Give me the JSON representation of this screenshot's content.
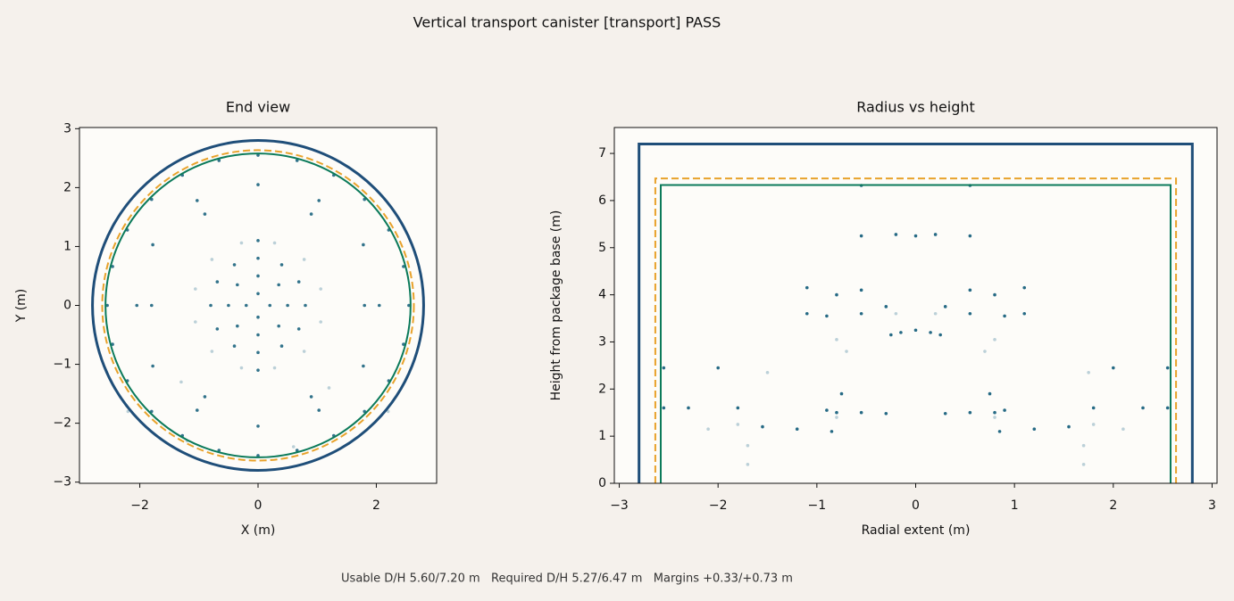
{
  "title": "Vertical transport canister [transport] PASS",
  "footer": "Usable D/H 5.60/7.20 m   Required D/H 5.27/6.47 m   Margins +0.33/+0.73 m",
  "chart_data": [
    {
      "type": "scatter",
      "title": "End view",
      "x_label": "X (m)",
      "y_label": "Y (m)",
      "xlim": [
        -3.02,
        3.02
      ],
      "ylim": [
        -3.02,
        3.02
      ],
      "xticks": [
        {
          "value": -2,
          "label": "−2"
        },
        0,
        2
      ],
      "yticks": [
        {
          "value": -3,
          "label": "−3"
        },
        {
          "value": -2,
          "label": "−2"
        },
        {
          "value": -1,
          "label": "−1"
        },
        0,
        1,
        2,
        3
      ],
      "outlines": [
        {
          "r": 2.8,
          "color": "#1f4e79",
          "dashed": false
        },
        {
          "r": 2.635,
          "color": "#e8a22b",
          "dashed": true
        },
        {
          "r": 2.58,
          "color": "#0b7a5a",
          "dashed": false
        }
      ],
      "series": [
        {
          "color": "#0e5a78",
          "opacity": 0.85,
          "x": [
            2.55,
            2.46,
            2.21,
            1.8,
            1.28,
            0.66,
            0,
            -0.66,
            -1.28,
            -1.8,
            -2.21,
            -2.46,
            -2.55,
            -2.46,
            -2.21,
            -1.8,
            -1.28,
            -0.66,
            0,
            0.66,
            1.28,
            1.8,
            2.21,
            2.46,
            2.05,
            1.78,
            1.03,
            0,
            -1.03,
            -1.78,
            -2.05,
            -1.78,
            -1.03,
            0,
            1.03,
            1.78,
            0.8,
            0.69,
            0.4,
            0,
            -0.4,
            -0.69,
            -0.8,
            -0.69,
            -0.4,
            0,
            0.4,
            0.69,
            0.5,
            0.35,
            0,
            -0.35,
            -0.5,
            -0.35,
            0,
            0.35,
            0.2,
            0,
            -0.2,
            0,
            -0.9,
            0.9,
            -1.8,
            1.8,
            0.9,
            -0.9,
            0,
            0
          ],
          "y": [
            0,
            0.66,
            1.28,
            1.8,
            2.21,
            2.46,
            2.55,
            2.46,
            2.21,
            1.8,
            1.28,
            0.66,
            0,
            -0.66,
            -1.28,
            -1.8,
            -2.21,
            -2.46,
            -2.55,
            -2.46,
            -2.21,
            -1.8,
            -1.28,
            -0.66,
            0,
            1.03,
            1.78,
            2.05,
            1.78,
            1.03,
            0,
            -1.03,
            -1.78,
            -2.05,
            -1.78,
            -1.03,
            0,
            0.4,
            0.69,
            0.8,
            0.69,
            0.4,
            0,
            -0.4,
            -0.69,
            -0.8,
            -0.69,
            -0.4,
            0,
            0.35,
            0.5,
            0.35,
            0,
            -0.35,
            -0.5,
            -0.35,
            0,
            0.2,
            0,
            -0.2,
            1.55,
            1.55,
            0,
            0,
            -1.55,
            -1.55,
            1.1,
            -1.1
          ]
        },
        {
          "color": "#8fb3c2",
          "opacity": 0.6,
          "x": [
            1.06,
            0.78,
            0.28,
            -0.28,
            -0.78,
            -1.06,
            -1.06,
            -0.78,
            -0.28,
            0.28,
            0.78,
            1.06,
            -1.3,
            1.2,
            -1.2,
            0.6,
            -2.2,
            2.2
          ],
          "y": [
            0.28,
            0.78,
            1.06,
            1.06,
            0.78,
            0.28,
            -0.28,
            -0.78,
            -1.06,
            -1.06,
            -0.78,
            -0.28,
            -1.3,
            -1.4,
            -2.3,
            -2.4,
            -1.8,
            -1.8
          ]
        }
      ]
    },
    {
      "type": "scatter",
      "title": "Radius vs height",
      "x_label": "Radial extent (m)",
      "y_label": "Height from package base (m)",
      "xlim": [
        -3.05,
        3.05
      ],
      "ylim": [
        0,
        7.55
      ],
      "xticks": [
        {
          "value": -3,
          "label": "−3"
        },
        {
          "value": -2,
          "label": "−2"
        },
        {
          "value": -1,
          "label": "−1"
        },
        0,
        1,
        2,
        3
      ],
      "yticks": [
        0,
        1,
        2,
        3,
        4,
        5,
        6,
        7
      ],
      "outlines": [
        {
          "r": 2.8,
          "h": 7.2,
          "color": "#1f4e79",
          "dashed": false
        },
        {
          "r": 2.635,
          "h": 6.47,
          "color": "#e8a22b",
          "dashed": true
        },
        {
          "r": 2.58,
          "h": 6.33,
          "color": "#0b7a5a",
          "dashed": false
        }
      ],
      "series": [
        {
          "color": "#0e5a78",
          "opacity": 0.9,
          "x": [
            -2.55,
            -2.0,
            2.0,
            2.55,
            -2.55,
            -2.3,
            -1.8,
            -1.55,
            -1.2,
            -0.9,
            -0.8,
            -0.55,
            -0.3,
            0.3,
            0.55,
            0.8,
            0.9,
            1.2,
            1.55,
            1.8,
            2.3,
            2.55,
            -0.85,
            0.85,
            -1.1,
            -0.9,
            -0.55,
            -0.3,
            0.3,
            0.55,
            0.9,
            1.1,
            -0.15,
            0,
            0.15,
            -0.25,
            0.25,
            -0.55,
            -0.2,
            0,
            0.2,
            0.55,
            -0.55,
            0.55,
            -1.1,
            1.1,
            -0.55,
            0.55,
            -0.8,
            0.8,
            -0.75,
            0.75
          ],
          "y": [
            2.45,
            2.45,
            2.45,
            2.45,
            1.6,
            1.6,
            1.6,
            1.2,
            1.15,
            1.55,
            1.5,
            1.5,
            1.48,
            1.48,
            1.5,
            1.5,
            1.55,
            1.15,
            1.2,
            1.6,
            1.6,
            1.6,
            1.1,
            1.1,
            3.6,
            3.55,
            3.6,
            3.75,
            3.75,
            3.6,
            3.55,
            3.6,
            3.2,
            3.25,
            3.2,
            3.15,
            3.15,
            5.25,
            5.28,
            5.25,
            5.28,
            5.25,
            6.32,
            6.32,
            4.15,
            4.15,
            4.1,
            4.1,
            4.0,
            4.0,
            1.9,
            1.9
          ]
        },
        {
          "color": "#8fb3c2",
          "opacity": 0.6,
          "x": [
            -1.7,
            -1.7,
            1.7,
            1.7,
            -1.8,
            1.8,
            -0.7,
            0.7,
            -0.8,
            0.8,
            -1.5,
            1.75,
            -2.1,
            2.1,
            -0.2,
            0.2,
            -0.8,
            0.8
          ],
          "y": [
            0.8,
            0.4,
            0.4,
            0.8,
            1.25,
            1.25,
            2.8,
            2.8,
            3.05,
            3.05,
            2.35,
            2.35,
            1.15,
            1.15,
            3.6,
            3.6,
            1.4,
            1.4
          ]
        }
      ]
    }
  ]
}
